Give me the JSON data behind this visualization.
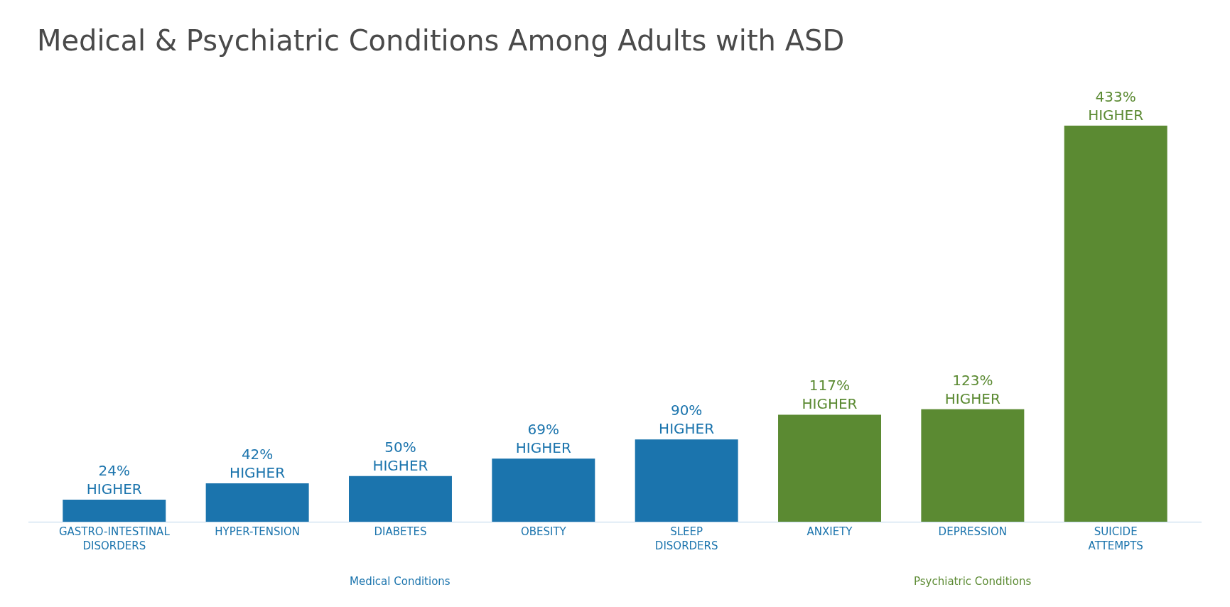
{
  "chart_data": {
    "type": "bar",
    "title": "Medical & Psychiatric Conditions Among Adults with ASD",
    "categories": [
      "GASTRO-INTESTINAL DISORDERS",
      "HYPER-TENSION",
      "DIABETES",
      "OBESITY",
      "SLEEP DISORDERS",
      "ANXIETY",
      "DEPRESSION",
      "SUICIDE ATTEMPTS"
    ],
    "values": [
      24,
      42,
      50,
      69,
      90,
      117,
      123,
      433
    ],
    "value_labels": [
      "24% HIGHER",
      "42% HIGHER",
      "50% HIGHER",
      "69% HIGHER",
      "90% HIGHER",
      "117% HIGHER",
      "123% HIGHER",
      "433% HIGHER"
    ],
    "colors": [
      "#1b74ad",
      "#1b74ad",
      "#1b74ad",
      "#1b74ad",
      "#1b74ad",
      "#5b8a32",
      "#5b8a32",
      "#5b8a32"
    ],
    "annotations": [
      "Medical Conditions",
      "Psychiatric Conditions"
    ]
  }
}
